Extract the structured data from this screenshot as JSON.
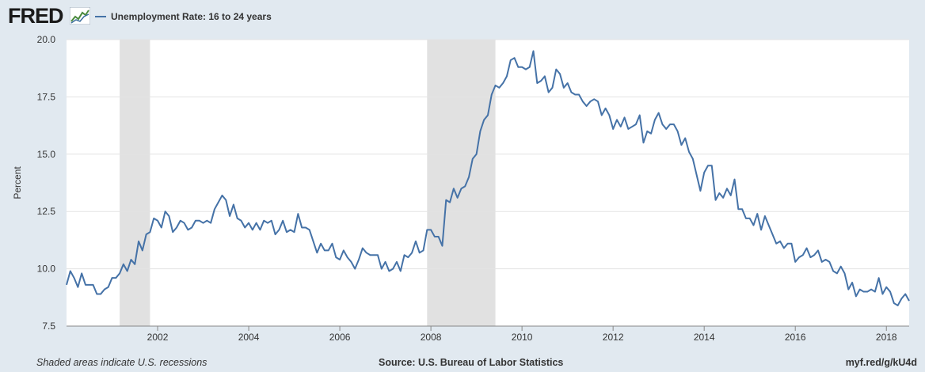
{
  "header": {
    "logo_text": "FRED",
    "logo_icon": "fred-chart-icon"
  },
  "footer": {
    "recession_note": "Shaded areas indicate U.S. recessions",
    "source": "Source: U.S. Bureau of Labor Statistics",
    "short_url": "myf.red/g/kU4d"
  },
  "colors": {
    "series": "#4572a7",
    "recession": "#e1e1e1",
    "background": "#e1e9f0",
    "plot": "#ffffff",
    "grid": "#e3e3e3"
  },
  "chart_data": {
    "type": "line",
    "title": "",
    "xlabel": "",
    "ylabel": "Percent",
    "xlim": [
      "2000-01",
      "2018-07"
    ],
    "ylim": [
      7.5,
      20.0
    ],
    "y_ticks": [
      "7.5",
      "10.0",
      "12.5",
      "15.0",
      "17.5",
      "20.0"
    ],
    "x_ticks": [
      "2002",
      "2004",
      "2006",
      "2008",
      "2010",
      "2012",
      "2014",
      "2016",
      "2018"
    ],
    "grid": true,
    "legend": "top-left",
    "recessions": [
      {
        "start": "2001-03",
        "end": "2001-11"
      },
      {
        "start": "2007-12",
        "end": "2009-06"
      }
    ],
    "series": [
      {
        "name": "Unemployment Rate: 16 to 24 years",
        "points": [
          [
            "2000-01",
            9.3
          ],
          [
            "2000-02",
            9.9
          ],
          [
            "2000-03",
            9.6
          ],
          [
            "2000-04",
            9.2
          ],
          [
            "2000-05",
            9.8
          ],
          [
            "2000-06",
            9.3
          ],
          [
            "2000-07",
            9.3
          ],
          [
            "2000-08",
            9.3
          ],
          [
            "2000-09",
            8.9
          ],
          [
            "2000-10",
            8.9
          ],
          [
            "2000-11",
            9.1
          ],
          [
            "2000-12",
            9.2
          ],
          [
            "2001-01",
            9.6
          ],
          [
            "2001-02",
            9.6
          ],
          [
            "2001-03",
            9.8
          ],
          [
            "2001-04",
            10.2
          ],
          [
            "2001-05",
            9.9
          ],
          [
            "2001-06",
            10.4
          ],
          [
            "2001-07",
            10.2
          ],
          [
            "2001-08",
            11.2
          ],
          [
            "2001-09",
            10.8
          ],
          [
            "2001-10",
            11.5
          ],
          [
            "2001-11",
            11.6
          ],
          [
            "2001-12",
            12.2
          ],
          [
            "2002-01",
            12.1
          ],
          [
            "2002-02",
            11.8
          ],
          [
            "2002-03",
            12.5
          ],
          [
            "2002-04",
            12.3
          ],
          [
            "2002-05",
            11.6
          ],
          [
            "2002-06",
            11.8
          ],
          [
            "2002-07",
            12.1
          ],
          [
            "2002-08",
            12.0
          ],
          [
            "2002-09",
            11.7
          ],
          [
            "2002-10",
            11.8
          ],
          [
            "2002-11",
            12.1
          ],
          [
            "2002-12",
            12.1
          ],
          [
            "2003-01",
            12.0
          ],
          [
            "2003-02",
            12.1
          ],
          [
            "2003-03",
            12.0
          ],
          [
            "2003-04",
            12.6
          ],
          [
            "2003-05",
            12.9
          ],
          [
            "2003-06",
            13.2
          ],
          [
            "2003-07",
            13.0
          ],
          [
            "2003-08",
            12.3
          ],
          [
            "2003-09",
            12.8
          ],
          [
            "2003-10",
            12.2
          ],
          [
            "2003-11",
            12.1
          ],
          [
            "2003-12",
            11.8
          ],
          [
            "2004-01",
            12.0
          ],
          [
            "2004-02",
            11.7
          ],
          [
            "2004-03",
            12.0
          ],
          [
            "2004-04",
            11.7
          ],
          [
            "2004-05",
            12.1
          ],
          [
            "2004-06",
            12.0
          ],
          [
            "2004-07",
            12.1
          ],
          [
            "2004-08",
            11.5
          ],
          [
            "2004-09",
            11.7
          ],
          [
            "2004-10",
            12.1
          ],
          [
            "2004-11",
            11.6
          ],
          [
            "2004-12",
            11.7
          ],
          [
            "2005-01",
            11.6
          ],
          [
            "2005-02",
            12.4
          ],
          [
            "2005-03",
            11.8
          ],
          [
            "2005-04",
            11.8
          ],
          [
            "2005-05",
            11.7
          ],
          [
            "2005-06",
            11.2
          ],
          [
            "2005-07",
            10.7
          ],
          [
            "2005-08",
            11.1
          ],
          [
            "2005-09",
            10.8
          ],
          [
            "2005-10",
            10.8
          ],
          [
            "2005-11",
            11.1
          ],
          [
            "2005-12",
            10.5
          ],
          [
            "2006-01",
            10.4
          ],
          [
            "2006-02",
            10.8
          ],
          [
            "2006-03",
            10.5
          ],
          [
            "2006-04",
            10.3
          ],
          [
            "2006-05",
            10.0
          ],
          [
            "2006-06",
            10.4
          ],
          [
            "2006-07",
            10.9
          ],
          [
            "2006-08",
            10.7
          ],
          [
            "2006-09",
            10.6
          ],
          [
            "2006-10",
            10.6
          ],
          [
            "2006-11",
            10.6
          ],
          [
            "2006-12",
            10.0
          ],
          [
            "2007-01",
            10.3
          ],
          [
            "2007-02",
            9.9
          ],
          [
            "2007-03",
            10.0
          ],
          [
            "2007-04",
            10.3
          ],
          [
            "2007-05",
            9.9
          ],
          [
            "2007-06",
            10.6
          ],
          [
            "2007-07",
            10.5
          ],
          [
            "2007-08",
            10.7
          ],
          [
            "2007-09",
            11.2
          ],
          [
            "2007-10",
            10.7
          ],
          [
            "2007-11",
            10.8
          ],
          [
            "2007-12",
            11.7
          ],
          [
            "2008-01",
            11.7
          ],
          [
            "2008-02",
            11.4
          ],
          [
            "2008-03",
            11.4
          ],
          [
            "2008-04",
            11.0
          ],
          [
            "2008-05",
            13.0
          ],
          [
            "2008-06",
            12.9
          ],
          [
            "2008-07",
            13.5
          ],
          [
            "2008-08",
            13.1
          ],
          [
            "2008-09",
            13.5
          ],
          [
            "2008-10",
            13.6
          ],
          [
            "2008-11",
            14.0
          ],
          [
            "2008-12",
            14.8
          ],
          [
            "2009-01",
            15.0
          ],
          [
            "2009-02",
            16.0
          ],
          [
            "2009-03",
            16.5
          ],
          [
            "2009-04",
            16.7
          ],
          [
            "2009-05",
            17.6
          ],
          [
            "2009-06",
            18.0
          ],
          [
            "2009-07",
            17.9
          ],
          [
            "2009-08",
            18.1
          ],
          [
            "2009-09",
            18.4
          ],
          [
            "2009-10",
            19.1
          ],
          [
            "2009-11",
            19.2
          ],
          [
            "2009-12",
            18.8
          ],
          [
            "2010-01",
            18.8
          ],
          [
            "2010-02",
            18.7
          ],
          [
            "2010-03",
            18.8
          ],
          [
            "2010-04",
            19.5
          ],
          [
            "2010-05",
            18.1
          ],
          [
            "2010-06",
            18.2
          ],
          [
            "2010-07",
            18.4
          ],
          [
            "2010-08",
            17.7
          ],
          [
            "2010-09",
            17.9
          ],
          [
            "2010-10",
            18.7
          ],
          [
            "2010-11",
            18.5
          ],
          [
            "2010-12",
            17.9
          ],
          [
            "2011-01",
            18.1
          ],
          [
            "2011-02",
            17.7
          ],
          [
            "2011-03",
            17.6
          ],
          [
            "2011-04",
            17.6
          ],
          [
            "2011-05",
            17.3
          ],
          [
            "2011-06",
            17.1
          ],
          [
            "2011-07",
            17.3
          ],
          [
            "2011-08",
            17.4
          ],
          [
            "2011-09",
            17.3
          ],
          [
            "2011-10",
            16.7
          ],
          [
            "2011-11",
            17.0
          ],
          [
            "2011-12",
            16.7
          ],
          [
            "2012-01",
            16.1
          ],
          [
            "2012-02",
            16.5
          ],
          [
            "2012-03",
            16.2
          ],
          [
            "2012-04",
            16.6
          ],
          [
            "2012-05",
            16.1
          ],
          [
            "2012-06",
            16.2
          ],
          [
            "2012-07",
            16.3
          ],
          [
            "2012-08",
            16.7
          ],
          [
            "2012-09",
            15.5
          ],
          [
            "2012-10",
            16.0
          ],
          [
            "2012-11",
            15.9
          ],
          [
            "2012-12",
            16.5
          ],
          [
            "2013-01",
            16.8
          ],
          [
            "2013-02",
            16.3
          ],
          [
            "2013-03",
            16.1
          ],
          [
            "2013-04",
            16.3
          ],
          [
            "2013-05",
            16.3
          ],
          [
            "2013-06",
            16.0
          ],
          [
            "2013-07",
            15.4
          ],
          [
            "2013-08",
            15.7
          ],
          [
            "2013-09",
            15.1
          ],
          [
            "2013-10",
            14.8
          ],
          [
            "2013-11",
            14.1
          ],
          [
            "2013-12",
            13.4
          ],
          [
            "2014-01",
            14.2
          ],
          [
            "2014-02",
            14.5
          ],
          [
            "2014-03",
            14.5
          ],
          [
            "2014-04",
            13.0
          ],
          [
            "2014-05",
            13.3
          ],
          [
            "2014-06",
            13.1
          ],
          [
            "2014-07",
            13.5
          ],
          [
            "2014-08",
            13.2
          ],
          [
            "2014-09",
            13.9
          ],
          [
            "2014-10",
            12.6
          ],
          [
            "2014-11",
            12.6
          ],
          [
            "2014-12",
            12.2
          ],
          [
            "2015-01",
            12.2
          ],
          [
            "2015-02",
            11.9
          ],
          [
            "2015-03",
            12.4
          ],
          [
            "2015-04",
            11.7
          ],
          [
            "2015-05",
            12.3
          ],
          [
            "2015-06",
            11.9
          ],
          [
            "2015-07",
            11.5
          ],
          [
            "2015-08",
            11.1
          ],
          [
            "2015-09",
            11.2
          ],
          [
            "2015-10",
            10.9
          ],
          [
            "2015-11",
            11.1
          ],
          [
            "2015-12",
            11.1
          ],
          [
            "2016-01",
            10.3
          ],
          [
            "2016-02",
            10.5
          ],
          [
            "2016-03",
            10.6
          ],
          [
            "2016-04",
            10.9
          ],
          [
            "2016-05",
            10.5
          ],
          [
            "2016-06",
            10.6
          ],
          [
            "2016-07",
            10.8
          ],
          [
            "2016-08",
            10.3
          ],
          [
            "2016-09",
            10.4
          ],
          [
            "2016-10",
            10.3
          ],
          [
            "2016-11",
            9.9
          ],
          [
            "2016-12",
            9.8
          ],
          [
            "2017-01",
            10.1
          ],
          [
            "2017-02",
            9.8
          ],
          [
            "2017-03",
            9.1
          ],
          [
            "2017-04",
            9.4
          ],
          [
            "2017-05",
            8.8
          ],
          [
            "2017-06",
            9.1
          ],
          [
            "2017-07",
            9.0
          ],
          [
            "2017-08",
            9.0
          ],
          [
            "2017-09",
            9.1
          ],
          [
            "2017-10",
            9.0
          ],
          [
            "2017-11",
            9.6
          ],
          [
            "2017-12",
            8.9
          ],
          [
            "2018-01",
            9.2
          ],
          [
            "2018-02",
            9.0
          ],
          [
            "2018-03",
            8.5
          ],
          [
            "2018-04",
            8.4
          ],
          [
            "2018-05",
            8.7
          ],
          [
            "2018-06",
            8.9
          ],
          [
            "2018-07",
            8.6
          ]
        ]
      }
    ]
  }
}
